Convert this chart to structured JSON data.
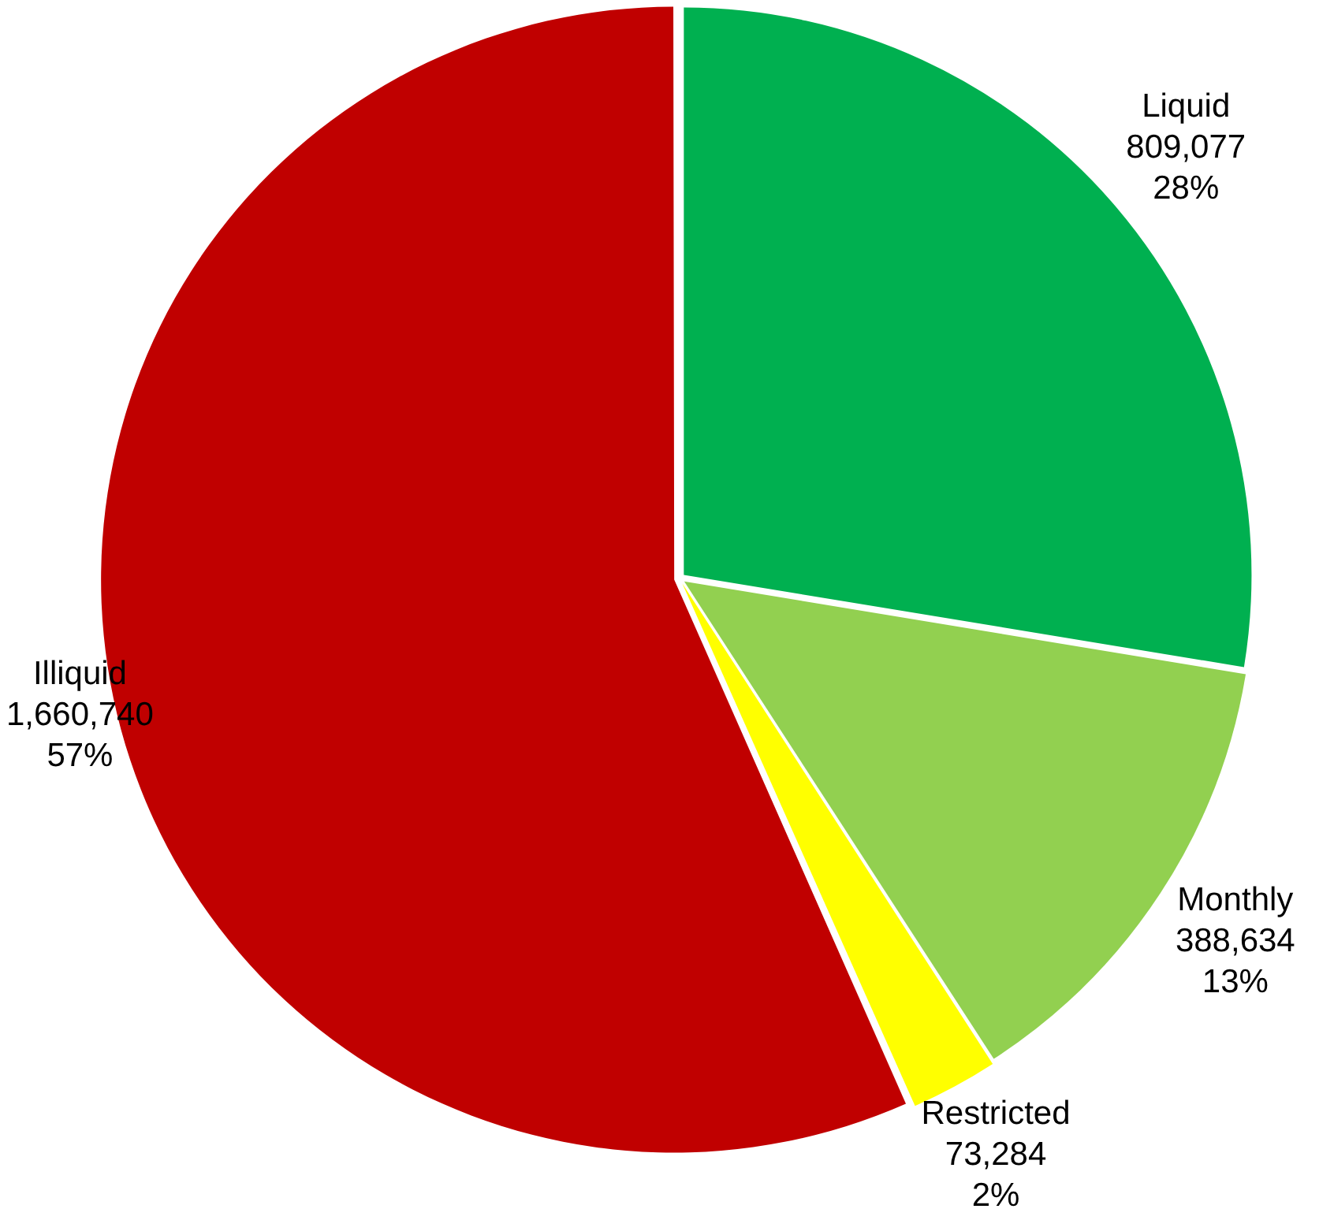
{
  "chart_data": {
    "type": "pie",
    "categories": [
      "Liquid",
      "Monthly",
      "Restricted",
      "Illiquid"
    ],
    "values": [
      809077,
      388634,
      73284,
      1660740
    ],
    "value_labels": [
      "809,077\n28%",
      "388,634\n13%",
      "73,284\n2%",
      "1,660,740\n57%"
    ],
    "colors": [
      "#00b050",
      "#92d050",
      "#ffff00",
      "#c00000"
    ],
    "legend": false
  }
}
